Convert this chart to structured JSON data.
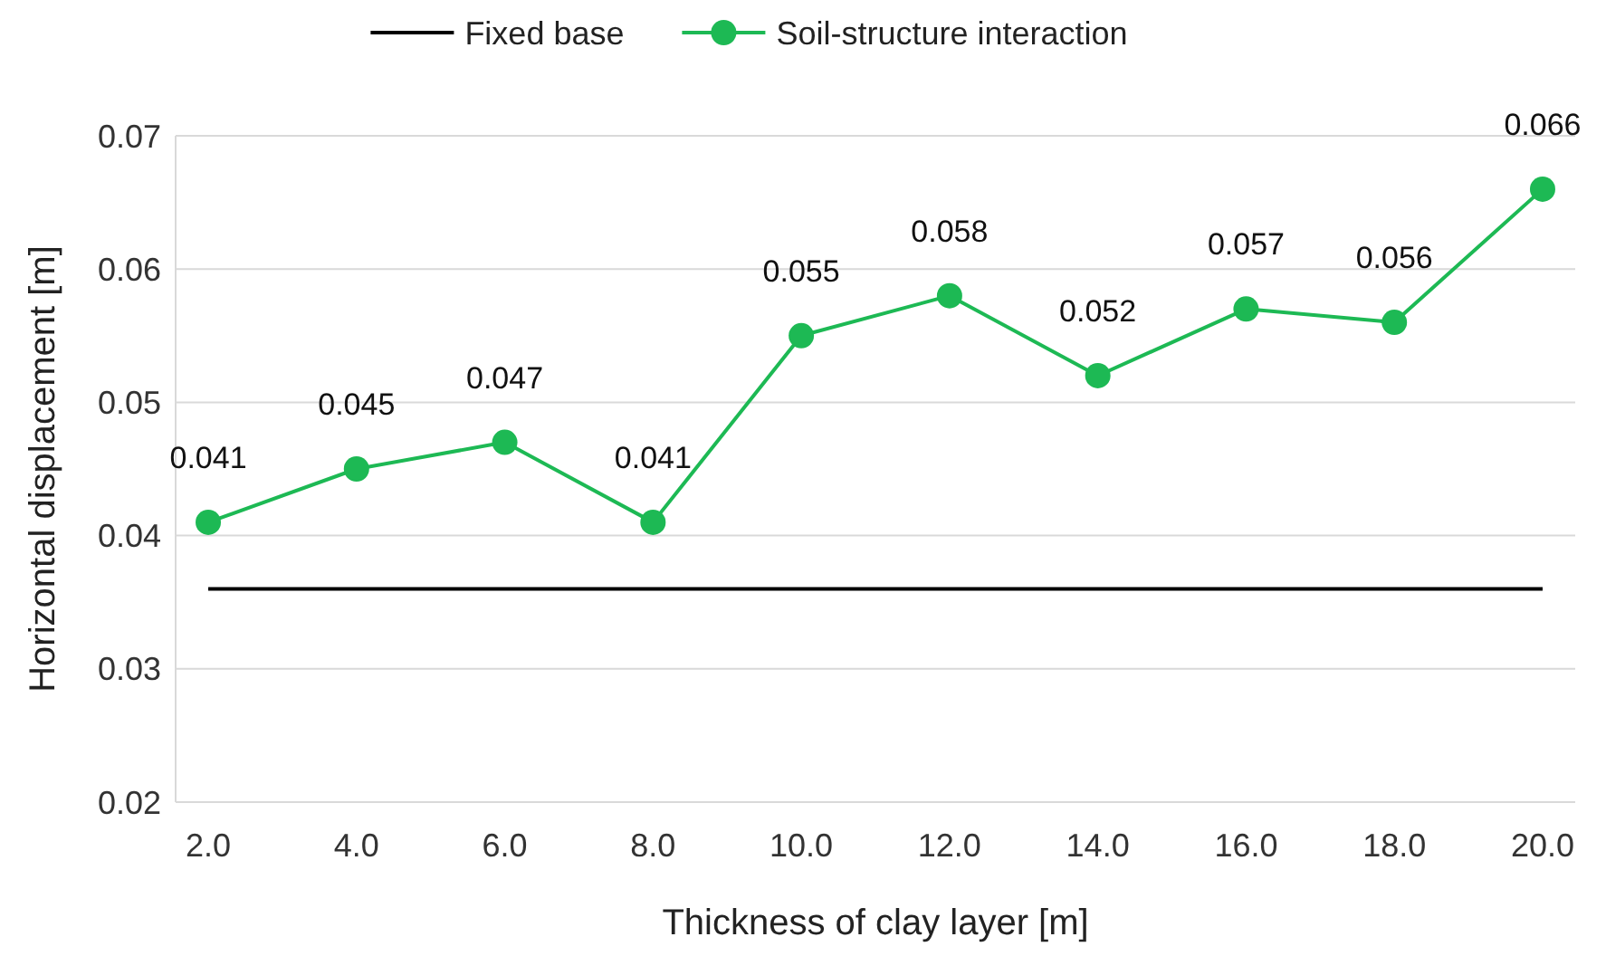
{
  "chart_data": {
    "type": "line",
    "xlabel": "Thickness of clay layer [m]",
    "ylabel": "Horizontal displacement [m]",
    "categories": [
      "2.0",
      "4.0",
      "6.0",
      "8.0",
      "10.0",
      "12.0",
      "14.0",
      "16.0",
      "18.0",
      "20.0"
    ],
    "series": [
      {
        "name": "Fixed base",
        "color": "#000000",
        "marker": "none",
        "values": [
          0.036,
          0.036,
          0.036,
          0.036,
          0.036,
          0.036,
          0.036,
          0.036,
          0.036,
          0.036
        ]
      },
      {
        "name": "Soil-structure interaction",
        "color": "#1db954",
        "marker": "circle",
        "values": [
          0.041,
          0.045,
          0.047,
          0.041,
          0.055,
          0.058,
          0.052,
          0.057,
          0.056,
          0.066
        ],
        "value_labels": [
          "0.041",
          "0.045",
          "0.047",
          "0.041",
          "0.055",
          "0.058",
          "0.052",
          "0.057",
          "0.056",
          "0.066"
        ]
      }
    ],
    "ylim": [
      0.02,
      0.07
    ],
    "yticks": [
      {
        "value": 0.02,
        "label": "0.02"
      },
      {
        "value": 0.03,
        "label": "0.03"
      },
      {
        "value": 0.04,
        "label": "0.04"
      },
      {
        "value": 0.05,
        "label": "0.05"
      },
      {
        "value": 0.06,
        "label": "0.06"
      },
      {
        "value": 0.07,
        "label": "0.07"
      }
    ],
    "grid": "y",
    "legend": "top",
    "line_style": "solid"
  }
}
